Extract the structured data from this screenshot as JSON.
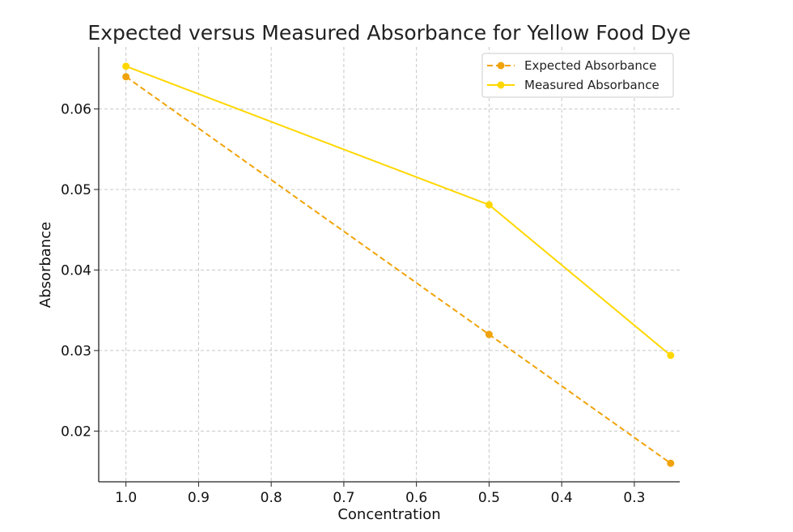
{
  "chart_data": {
    "type": "line",
    "title": "Expected versus Measured Absorbance for Yellow Food Dye",
    "xlabel": "Concentration",
    "ylabel": "Absorbance",
    "x_inverted": true,
    "xlim": [
      1.0375,
      0.2375
    ],
    "ylim": [
      0.0137,
      0.0677
    ],
    "x_ticks": [
      1.0,
      0.9,
      0.8,
      0.7,
      0.6,
      0.5,
      0.4,
      0.3
    ],
    "x_tick_labels": [
      "1.0",
      "0.9",
      "0.8",
      "0.7",
      "0.6",
      "0.5",
      "0.4",
      "0.3"
    ],
    "y_ticks": [
      0.02,
      0.03,
      0.04,
      0.05,
      0.06
    ],
    "y_tick_labels": [
      "0.02",
      "0.03",
      "0.04",
      "0.05",
      "0.06"
    ],
    "grid": true,
    "legend_position": "top-right",
    "x": [
      1.0,
      0.5,
      0.25
    ],
    "series": [
      {
        "name": "Expected Absorbance",
        "values": [
          0.064,
          0.032,
          0.016
        ],
        "color": "#f0a30a",
        "line_style": "dashed",
        "marker": "circle"
      },
      {
        "name": "Measured Absorbance",
        "values": [
          0.0653,
          0.0481,
          0.0294
        ],
        "color": "#ffd700",
        "line_style": "solid",
        "marker": "circle"
      }
    ]
  }
}
